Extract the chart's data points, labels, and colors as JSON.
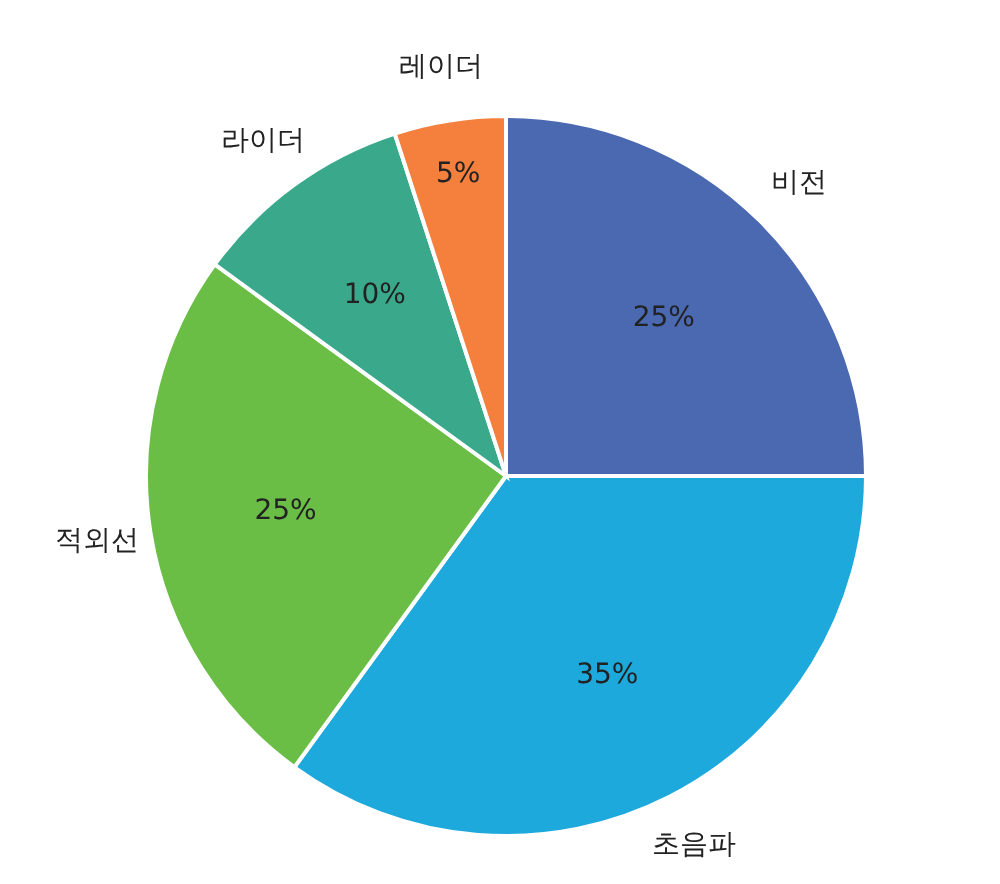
{
  "chart_data": {
    "type": "pie",
    "categories": [
      "비전",
      "초음파",
      "적외선",
      "라이더",
      "레이더"
    ],
    "values": [
      25,
      35,
      25,
      10,
      5
    ],
    "colors": [
      "#4a69b0",
      "#1ea9dc",
      "#6abd45",
      "#3aa98b",
      "#f5803e"
    ],
    "value_labels": [
      "25%",
      "35%",
      "25%",
      "10%",
      "5%"
    ]
  }
}
